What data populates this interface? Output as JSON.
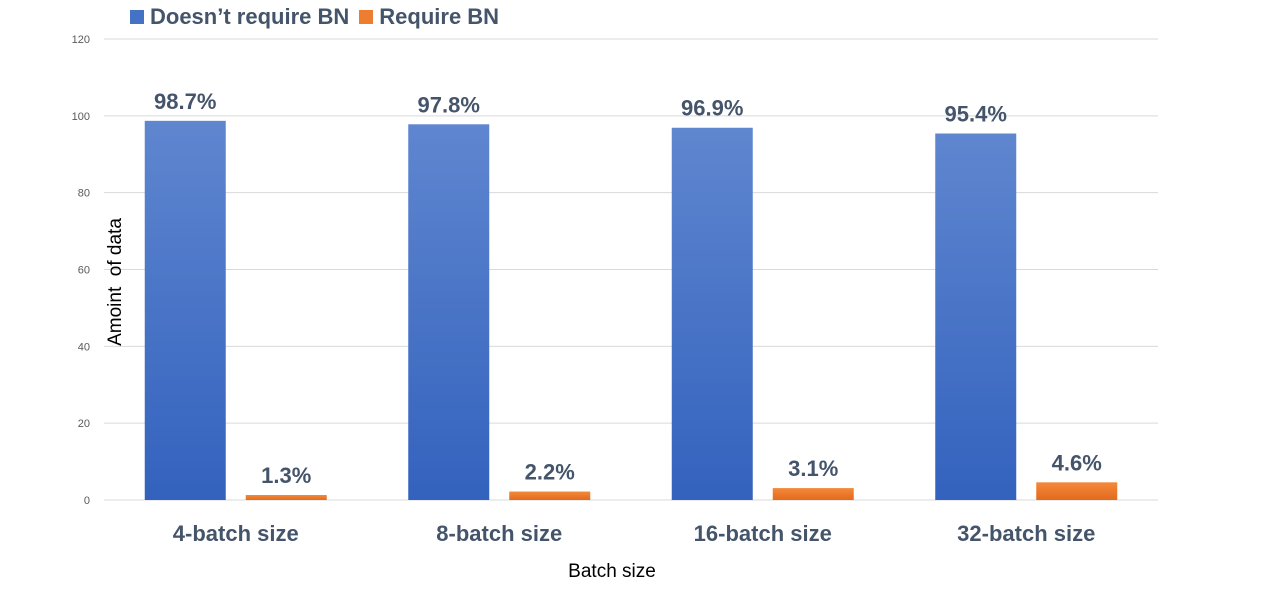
{
  "chart_data": {
    "type": "bar",
    "categories": [
      "4-batch size",
      "8-batch size",
      "16-batch size",
      "32-batch size"
    ],
    "series": [
      {
        "name": "Doesn’t require  BN",
        "values": [
          98.7,
          97.8,
          96.9,
          95.4
        ],
        "labels": [
          "98.7%",
          "97.8%",
          "96.9%",
          "95.4%"
        ],
        "color": "#4472c4"
      },
      {
        "name": "Require  BN",
        "values": [
          1.3,
          2.2,
          3.1,
          4.6
        ],
        "labels": [
          "1.3%",
          "2.2%",
          "3.1%",
          "4.6%"
        ],
        "color": "#ed7d31"
      }
    ],
    "xlabel": "Batch size",
    "ylabel": "Amoint  of data",
    "ylim": [
      0,
      120
    ],
    "yticks": [
      0,
      20,
      40,
      60,
      80,
      100,
      120
    ],
    "grid": true,
    "legend_position": "top-left"
  }
}
